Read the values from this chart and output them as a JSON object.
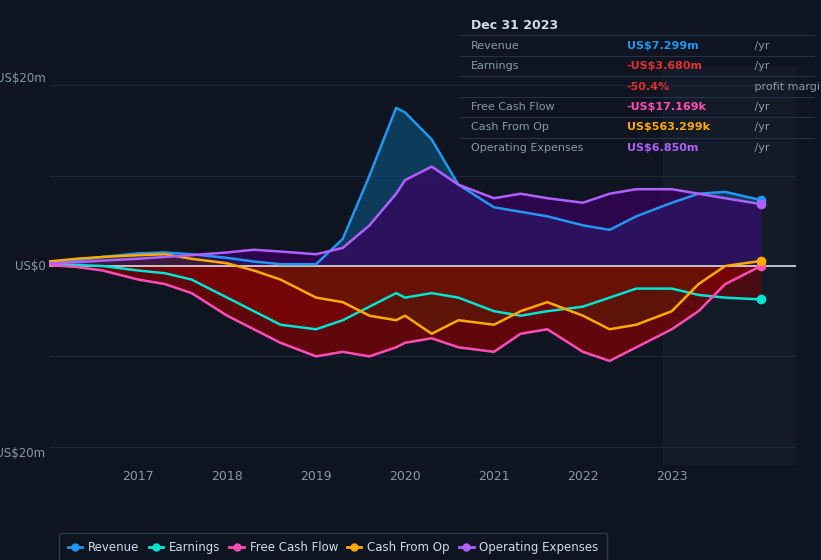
{
  "bg_color": "#0e1420",
  "plot_bg_color": "#0e1420",
  "panel_bg_color": "#131a28",
  "grid_color": "#1e2d3d",
  "info_bg": "#0a0e18",
  "info_border": "#2a3a50",
  "ylim": [
    -22,
    22
  ],
  "xlim": [
    2016.0,
    2024.4
  ],
  "xticks": [
    2017,
    2018,
    2019,
    2020,
    2021,
    2022,
    2023
  ],
  "ylabel_top": "US$20m",
  "ylabel_zero": "US$0",
  "ylabel_bot": "-US$20m",
  "series": {
    "Revenue": {
      "color": "#2196f3",
      "fill": "#0d4a6e",
      "fill_alpha": 0.75
    },
    "Earnings": {
      "color": "#00e5d1",
      "fill": "#00e5d1",
      "fill_alpha": 0.25
    },
    "Free Cash Flow": {
      "color": "#ff4db8",
      "fill": "#7a0000",
      "fill_alpha": 0.7
    },
    "Cash From Op": {
      "color": "#ffaa00",
      "fill": "#5a2800",
      "fill_alpha": 0.5
    },
    "Operating Expenses": {
      "color": "#b060ff",
      "fill": "#3a0060",
      "fill_alpha": 0.7
    }
  },
  "info_box": {
    "date": "Dec 31 2023",
    "rows": [
      {
        "label": "Revenue",
        "value": "US$7.299m",
        "vcolor": "#2196f3",
        "suffix": " /yr"
      },
      {
        "label": "Earnings",
        "value": "-US$3.680m",
        "vcolor": "#e03030",
        "suffix": " /yr"
      },
      {
        "label": "",
        "value": "-50.4%",
        "vcolor": "#e03030",
        "suffix": " profit margin"
      },
      {
        "label": "Free Cash Flow",
        "value": "-US$17.169k",
        "vcolor": "#ff4db8",
        "suffix": " /yr"
      },
      {
        "label": "Cash From Op",
        "value": "US$563.299k",
        "vcolor": "#ffaa00",
        "suffix": " /yr"
      },
      {
        "label": "Operating Expenses",
        "value": "US$6.850m",
        "vcolor": "#b060ff",
        "suffix": " /yr"
      }
    ]
  },
  "legend": [
    {
      "label": "Revenue",
      "color": "#2196f3"
    },
    {
      "label": "Earnings",
      "color": "#00e5d1"
    },
    {
      "label": "Free Cash Flow",
      "color": "#ff4db8"
    },
    {
      "label": "Cash From Op",
      "color": "#ffaa00"
    },
    {
      "label": "Operating Expenses",
      "color": "#b060ff"
    }
  ],
  "x": [
    2016.0,
    2016.3,
    2016.6,
    2017.0,
    2017.3,
    2017.6,
    2018.0,
    2018.3,
    2018.6,
    2019.0,
    2019.3,
    2019.6,
    2019.9,
    2020.0,
    2020.3,
    2020.6,
    2021.0,
    2021.3,
    2021.6,
    2022.0,
    2022.3,
    2022.6,
    2023.0,
    2023.3,
    2023.6,
    2024.0
  ],
  "revenue": [
    0.4,
    0.6,
    1.0,
    1.4,
    1.5,
    1.3,
    0.9,
    0.5,
    0.2,
    0.2,
    3.0,
    10.0,
    17.5,
    17.0,
    14.0,
    9.0,
    6.5,
    6.0,
    5.5,
    4.5,
    4.0,
    5.5,
    7.0,
    8.0,
    8.2,
    7.3
  ],
  "earnings": [
    0.2,
    0.1,
    0.0,
    -0.5,
    -0.8,
    -1.5,
    -3.5,
    -5.0,
    -6.5,
    -7.0,
    -6.0,
    -4.5,
    -3.0,
    -3.5,
    -3.0,
    -3.5,
    -5.0,
    -5.5,
    -5.0,
    -4.5,
    -3.5,
    -2.5,
    -2.5,
    -3.2,
    -3.5,
    -3.7
  ],
  "free_cash_flow": [
    0.1,
    -0.1,
    -0.5,
    -1.5,
    -2.0,
    -3.0,
    -5.5,
    -7.0,
    -8.5,
    -10.0,
    -9.5,
    -10.0,
    -9.0,
    -8.5,
    -8.0,
    -9.0,
    -9.5,
    -7.5,
    -7.0,
    -9.5,
    -10.5,
    -9.0,
    -7.0,
    -5.0,
    -2.0,
    -0.017
  ],
  "cash_from_op": [
    0.5,
    0.8,
    1.0,
    1.2,
    1.3,
    0.8,
    0.3,
    -0.5,
    -1.5,
    -3.5,
    -4.0,
    -5.5,
    -6.0,
    -5.5,
    -7.5,
    -6.0,
    -6.5,
    -5.0,
    -4.0,
    -5.5,
    -7.0,
    -6.5,
    -5.0,
    -2.0,
    0.0,
    0.56
  ],
  "operating_expenses": [
    0.3,
    0.4,
    0.6,
    0.8,
    1.0,
    1.2,
    1.5,
    1.8,
    1.6,
    1.3,
    2.0,
    4.5,
    8.0,
    9.5,
    11.0,
    9.0,
    7.5,
    8.0,
    7.5,
    7.0,
    8.0,
    8.5,
    8.5,
    8.0,
    7.5,
    6.85
  ]
}
